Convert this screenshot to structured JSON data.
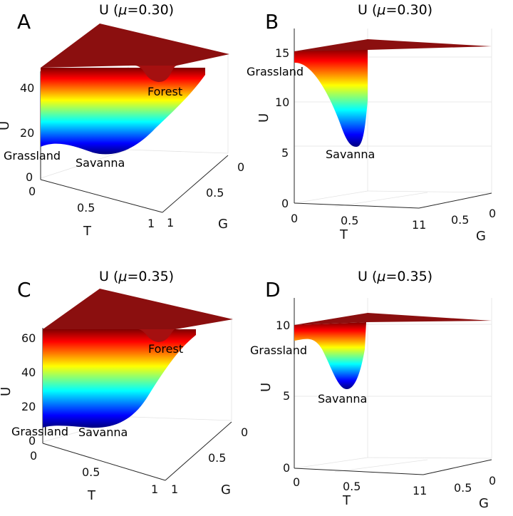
{
  "chart_data": [
    {
      "type": "surface",
      "panel": "A",
      "title_prefix": "U (",
      "title_mu": "μ",
      "title_suffix": "=0.30)",
      "xlabel": "T",
      "ylabel": "G",
      "zlabel": "U",
      "x_ticks": [
        "0",
        "0.5",
        "1"
      ],
      "y_ticks": [
        "0",
        "0.5",
        "1"
      ],
      "z_ticks": [
        "0",
        "20",
        "40"
      ],
      "zlim": [
        0,
        50
      ],
      "annotations": [
        "Grassland",
        "Savanna",
        "Forest"
      ],
      "minima": [
        {
          "name": "Grassland",
          "U": 14
        },
        {
          "name": "Savanna",
          "U": 12
        },
        {
          "name": "Forest",
          "U": 38
        }
      ]
    },
    {
      "type": "surface",
      "panel": "B",
      "title_prefix": "U (",
      "title_mu": "μ",
      "title_suffix": "=0.30)",
      "xlabel": "T",
      "ylabel": "G",
      "zlabel": "U",
      "x_ticks": [
        "0",
        "0.5",
        "11"
      ],
      "y_ticks": [
        "0.5",
        "0"
      ],
      "z_ticks": [
        "0",
        "5",
        "10",
        "15"
      ],
      "zlim": [
        0,
        16
      ],
      "annotations": [
        "Grassland",
        "Savanna"
      ],
      "minima": [
        {
          "name": "Grassland",
          "U": 13.8
        },
        {
          "name": "Savanna",
          "U": 5.6
        }
      ]
    },
    {
      "type": "surface",
      "panel": "C",
      "title_prefix": "U (",
      "title_mu": "μ",
      "title_suffix": "=0.35)",
      "xlabel": "T",
      "ylabel": "G",
      "zlabel": "U",
      "x_ticks": [
        "0",
        "0.5",
        "1"
      ],
      "y_ticks": [
        "0",
        "0.5",
        "1"
      ],
      "z_ticks": [
        "0",
        "20",
        "40",
        "60"
      ],
      "zlim": [
        0,
        70
      ],
      "annotations": [
        "Grassland",
        "Savanna",
        "Forest"
      ],
      "minima": [
        {
          "name": "Grassland",
          "U": 10
        },
        {
          "name": "Savanna",
          "U": 9
        },
        {
          "name": "Forest",
          "U": 52
        }
      ]
    },
    {
      "type": "surface",
      "panel": "D",
      "title_prefix": "U (",
      "title_mu": "μ",
      "title_suffix": "=0.35)",
      "xlabel": "T",
      "ylabel": "G",
      "zlabel": "U",
      "x_ticks": [
        "0",
        "0.5",
        "11"
      ],
      "y_ticks": [
        "0.5",
        "0"
      ],
      "z_ticks": [
        "0",
        "5",
        "10"
      ],
      "zlim": [
        0,
        11
      ],
      "annotations": [
        "Grassland",
        "Savanna"
      ],
      "minima": [
        {
          "name": "Grassland",
          "U": 9
        },
        {
          "name": "Savanna",
          "U": 5.4
        }
      ]
    }
  ],
  "colors": {
    "colormap": [
      "#00007f",
      "#0000ff",
      "#007fff",
      "#00ffff",
      "#7fff7f",
      "#ffff00",
      "#ff7f00",
      "#ff0000",
      "#7f0000"
    ],
    "top_face": "#8b0f0f",
    "axis": "#262626",
    "grid": "#e3e3e3"
  }
}
